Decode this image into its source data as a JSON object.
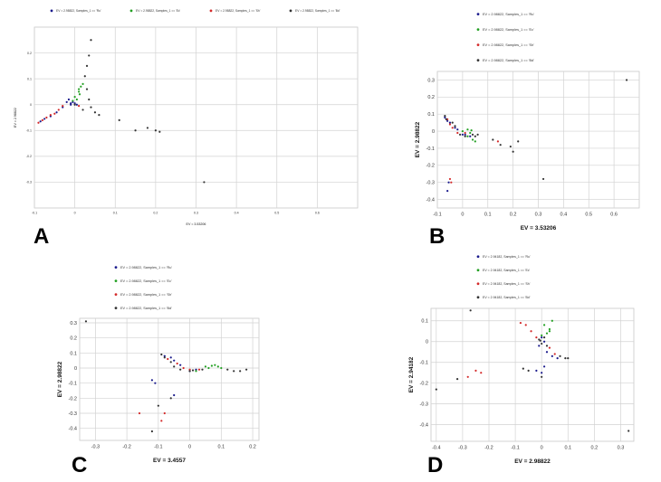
{
  "figure": {
    "panel_letters": [
      "A",
      "B",
      "C",
      "D"
    ]
  },
  "chart_data": [
    {
      "panel": "A",
      "type": "scatter",
      "xlabel": "EV = 3.53206",
      "ylabel": "EV = 2.98822",
      "xlim": [
        -0.1,
        0.7
      ],
      "ylim": [
        -0.4,
        0.3
      ],
      "x_ticks": [
        "-0.1",
        "0",
        "0.1",
        "0.2",
        "0.3",
        "0.4",
        "0.5",
        "0.6"
      ],
      "y_ticks": [
        "0.2",
        "0.1",
        "0",
        "-0.1",
        "-0.2",
        "-0.3"
      ],
      "grid": true,
      "legend_position": "top",
      "legend": [
        "EV = 2.98822, Samples_1 == 'Ru'",
        "EV = 2.98822, Samples_1 == 'Ec'",
        "EV = 2.98822, Samples_1 == 'Sh'",
        "EV = 2.98822, Samples_1 == 'Bd'"
      ],
      "series": [
        {
          "name": "EV = 2.98822, Samples_1 == 'Ru'",
          "color": "#1a1a8c",
          "points": [
            [
              -0.02,
              0.01
            ],
            [
              -0.01,
              0.0
            ],
            [
              -0.005,
              0.01
            ],
            [
              -0.015,
              0.02
            ],
            [
              -0.03,
              -0.01
            ],
            [
              -0.045,
              -0.03
            ],
            [
              -0.06,
              -0.045
            ],
            [
              -0.075,
              -0.055
            ],
            [
              -0.085,
              -0.065
            ],
            [
              0.0,
              0.005
            ],
            [
              0.005,
              0.0
            ],
            [
              -0.01,
              0.005
            ]
          ]
        },
        {
          "name": "EV = 2.98822, Samples_1 == 'Ec'",
          "color": "#22a022",
          "points": [
            [
              0.005,
              0.02
            ],
            [
              0.01,
              0.05
            ],
            [
              0.015,
              0.07
            ],
            [
              0.02,
              0.08
            ],
            [
              0.01,
              0.06
            ],
            [
              -0.005,
              0.015
            ],
            [
              0.0,
              0.03
            ],
            [
              0.012,
              0.04
            ]
          ]
        },
        {
          "name": "EV = 2.98822, Samples_1 == 'Sh'",
          "color": "#d42a2a",
          "points": [
            [
              -0.03,
              -0.005
            ],
            [
              -0.05,
              -0.035
            ],
            [
              -0.07,
              -0.05
            ],
            [
              -0.08,
              -0.06
            ],
            [
              -0.09,
              -0.07
            ],
            [
              -0.04,
              -0.02
            ],
            [
              0.01,
              -0.005
            ],
            [
              -0.06,
              -0.04
            ]
          ]
        },
        {
          "name": "EV = 2.98822, Samples_1 == 'Bd'",
          "color": "#333333",
          "points": [
            [
              0.04,
              0.25
            ],
            [
              0.035,
              0.19
            ],
            [
              0.03,
              0.15
            ],
            [
              0.025,
              0.11
            ],
            [
              0.03,
              0.06
            ],
            [
              0.035,
              0.02
            ],
            [
              0.04,
              -0.01
            ],
            [
              0.06,
              -0.04
            ],
            [
              0.11,
              -0.06
            ],
            [
              0.15,
              -0.1
            ],
            [
              0.18,
              -0.09
            ],
            [
              0.2,
              -0.1
            ],
            [
              0.21,
              -0.105
            ],
            [
              0.32,
              -0.3
            ],
            [
              0.02,
              -0.02
            ],
            [
              0.05,
              -0.03
            ],
            [
              0.0,
              0.0
            ]
          ]
        }
      ]
    },
    {
      "panel": "B",
      "type": "scatter",
      "xlabel": "EV = 3.53206",
      "ylabel": "EV = 2.98822",
      "xlim": [
        -0.1,
        0.7
      ],
      "ylim": [
        -0.45,
        0.35
      ],
      "x_ticks": [
        "-0.1",
        "0",
        "0.1",
        "0.2",
        "0.3",
        "0.4",
        "0.5",
        "0.6"
      ],
      "y_ticks": [
        "0.3",
        "0.2",
        "0.1",
        "0",
        "-0.1",
        "-0.2",
        "-0.3",
        "-0.4"
      ],
      "grid": true,
      "legend_position": "top",
      "legend": [
        "EV = 2.98822, Samples_1 == 'Ru'",
        "EV = 2.98822, Samples_1 == 'Ec'",
        "EV = 2.98822, Samples_1 == 'Sh'",
        "EV = 2.98822, Samples_1 == 'Bd'"
      ],
      "series": [
        {
          "name": "EV = 2.98822, Samples_1 == 'Ru'",
          "color": "#1a1a8c",
          "points": [
            [
              -0.07,
              0.08
            ],
            [
              -0.06,
              0.06
            ],
            [
              -0.05,
              0.05
            ],
            [
              -0.03,
              0.02
            ],
            [
              -0.02,
              0.01
            ],
            [
              0.0,
              -0.02
            ],
            [
              0.01,
              -0.02
            ],
            [
              0.03,
              -0.03
            ],
            [
              -0.06,
              -0.35
            ],
            [
              -0.055,
              -0.3
            ]
          ]
        },
        {
          "name": "EV = 2.98822, Samples_1 == 'Ec'",
          "color": "#22a022",
          "points": [
            [
              0.02,
              0.01
            ],
            [
              0.03,
              -0.01
            ],
            [
              0.04,
              -0.05
            ],
            [
              0.05,
              -0.06
            ],
            [
              0.02,
              -0.03
            ],
            [
              0.0,
              0.0
            ],
            [
              0.035,
              0.005
            ]
          ]
        },
        {
          "name": "EV = 2.98822, Samples_1 == 'Sh'",
          "color": "#d42a2a",
          "points": [
            [
              -0.06,
              0.07
            ],
            [
              -0.05,
              0.04
            ],
            [
              -0.04,
              0.02
            ],
            [
              -0.02,
              -0.01
            ],
            [
              0.01,
              -0.01
            ],
            [
              -0.05,
              -0.28
            ],
            [
              -0.045,
              -0.3
            ],
            [
              0.14,
              -0.06
            ]
          ]
        },
        {
          "name": "EV = 2.98822, Samples_1 == 'Bd'",
          "color": "#333333",
          "points": [
            [
              -0.07,
              0.09
            ],
            [
              -0.065,
              0.07
            ],
            [
              -0.04,
              0.05
            ],
            [
              -0.03,
              0.03
            ],
            [
              -0.01,
              -0.02
            ],
            [
              0.01,
              -0.03
            ],
            [
              0.04,
              -0.02
            ],
            [
              0.05,
              -0.03
            ],
            [
              0.06,
              -0.02
            ],
            [
              0.12,
              -0.05
            ],
            [
              0.15,
              -0.08
            ],
            [
              0.19,
              -0.09
            ],
            [
              0.2,
              -0.12
            ],
            [
              0.22,
              -0.06
            ],
            [
              0.32,
              -0.28
            ],
            [
              0.65,
              0.3
            ]
          ]
        }
      ]
    },
    {
      "panel": "C",
      "type": "scatter",
      "xlabel": "EV = 3.4557",
      "ylabel": "EV = 2.98822",
      "xlim": [
        -0.35,
        0.22
      ],
      "ylim": [
        -0.48,
        0.33
      ],
      "x_ticks": [
        "-0.3",
        "-0.2",
        "-0.1",
        "0",
        "0.1",
        "0.2"
      ],
      "y_ticks": [
        "0.3",
        "0.2",
        "0.1",
        "0",
        "-0.1",
        "-0.2",
        "-0.3",
        "-0.4"
      ],
      "grid": true,
      "legend_position": "top",
      "legend": [
        "EV = 2.98822, Samples_1 == 'Ru'",
        "EV = 2.98822, Samples_1 == 'Ec'",
        "EV = 2.98822, Samples_1 == 'Sh'",
        "EV = 2.98822, Samples_1 == 'Bd'"
      ],
      "series": [
        {
          "name": "EV = 2.98822, Samples_1 == 'Ru'",
          "color": "#1a1a8c",
          "points": [
            [
              -0.08,
              0.08
            ],
            [
              -0.06,
              0.07
            ],
            [
              -0.05,
              0.05
            ],
            [
              -0.03,
              0.02
            ],
            [
              0.0,
              -0.02
            ],
            [
              0.02,
              -0.01
            ],
            [
              -0.12,
              -0.08
            ],
            [
              -0.11,
              -0.1
            ],
            [
              -0.05,
              -0.18
            ]
          ]
        },
        {
          "name": "EV = 2.98822, Samples_1 == 'Ec'",
          "color": "#22a022",
          "points": [
            [
              0.05,
              0.01
            ],
            [
              0.06,
              0.0
            ],
            [
              0.08,
              0.02
            ],
            [
              0.09,
              0.01
            ],
            [
              0.1,
              0.0
            ],
            [
              0.02,
              -0.02
            ],
            [
              0.07,
              0.015
            ]
          ]
        },
        {
          "name": "EV = 2.98822, Samples_1 == 'Sh'",
          "color": "#d42a2a",
          "points": [
            [
              -0.07,
              0.06
            ],
            [
              -0.04,
              0.03
            ],
            [
              -0.02,
              0.0
            ],
            [
              0.0,
              -0.01
            ],
            [
              0.03,
              -0.01
            ],
            [
              -0.08,
              -0.3
            ],
            [
              -0.09,
              -0.35
            ],
            [
              -0.16,
              -0.3
            ]
          ]
        },
        {
          "name": "EV = 2.98822, Samples_1 == 'Bd'",
          "color": "#333333",
          "points": [
            [
              -0.09,
              0.09
            ],
            [
              -0.08,
              0.07
            ],
            [
              -0.06,
              0.04
            ],
            [
              -0.05,
              0.01
            ],
            [
              -0.03,
              -0.01
            ],
            [
              0.0,
              -0.02
            ],
            [
              0.01,
              -0.015
            ],
            [
              0.04,
              -0.01
            ],
            [
              0.12,
              -0.01
            ],
            [
              0.14,
              -0.02
            ],
            [
              0.16,
              -0.02
            ],
            [
              0.18,
              -0.01
            ],
            [
              -0.33,
              0.31
            ],
            [
              -0.12,
              -0.42
            ],
            [
              -0.06,
              -0.2
            ],
            [
              -0.1,
              -0.25
            ]
          ]
        }
      ]
    },
    {
      "panel": "D",
      "type": "scatter",
      "xlabel": "EV = 2.98822",
      "ylabel": "EV = 2.94182",
      "xlim": [
        -0.42,
        0.35
      ],
      "ylim": [
        -0.48,
        0.16
      ],
      "x_ticks": [
        "-0.4",
        "-0.3",
        "-0.2",
        "-0.1",
        "0",
        "0.1",
        "0.2",
        "0.3"
      ],
      "y_ticks": [
        "0.1",
        "0",
        "-0.1",
        "-0.2",
        "-0.3",
        "-0.4"
      ],
      "grid": true,
      "legend_position": "top",
      "legend": [
        "EV = 2.94182, Samples_1 == 'Ru'",
        "EV = 2.94182, Samples_1 == 'Ec'",
        "EV = 2.94182, Samples_1 == 'Sh'",
        "EV = 2.94182, Samples_1 == 'Bd'"
      ],
      "series": [
        {
          "name": "EV = 2.94182, Samples_1 == 'Ru'",
          "color": "#1a1a8c",
          "points": [
            [
              0.0,
              0.02
            ],
            [
              0.01,
              0.0
            ],
            [
              -0.01,
              -0.02
            ],
            [
              0.02,
              -0.05
            ],
            [
              0.04,
              -0.07
            ],
            [
              0.06,
              -0.08
            ],
            [
              0.01,
              -0.12
            ],
            [
              0.0,
              -0.15
            ],
            [
              -0.02,
              -0.14
            ]
          ]
        },
        {
          "name": "EV = 2.94182, Samples_1 == 'Ec'",
          "color": "#22a022",
          "points": [
            [
              0.02,
              0.04
            ],
            [
              0.03,
              0.05
            ],
            [
              0.01,
              0.08
            ],
            [
              0.04,
              0.1
            ],
            [
              0.03,
              0.06
            ],
            [
              0.0,
              0.03
            ]
          ]
        },
        {
          "name": "EV = 2.94182, Samples_1 == 'Sh'",
          "color": "#d42a2a",
          "points": [
            [
              -0.02,
              0.02
            ],
            [
              -0.04,
              0.05
            ],
            [
              -0.06,
              0.08
            ],
            [
              -0.08,
              0.09
            ],
            [
              0.03,
              -0.03
            ],
            [
              0.05,
              -0.06
            ],
            [
              -0.25,
              -0.14
            ],
            [
              -0.23,
              -0.15
            ],
            [
              -0.28,
              -0.17
            ]
          ]
        },
        {
          "name": "EV = 2.94182, Samples_1 == 'Bd'",
          "color": "#333333",
          "points": [
            [
              -0.01,
              0.01
            ],
            [
              0.0,
              -0.01
            ],
            [
              0.01,
              0.02
            ],
            [
              -0.005,
              0.005
            ],
            [
              0.02,
              -0.02
            ],
            [
              0.07,
              -0.07
            ],
            [
              0.09,
              -0.08
            ],
            [
              0.1,
              -0.08
            ],
            [
              -0.07,
              -0.13
            ],
            [
              -0.05,
              -0.14
            ],
            [
              0.0,
              -0.17
            ],
            [
              -0.27,
              0.15
            ],
            [
              -0.4,
              -0.23
            ],
            [
              0.33,
              -0.43
            ],
            [
              -0.32,
              -0.18
            ]
          ]
        }
      ]
    }
  ]
}
